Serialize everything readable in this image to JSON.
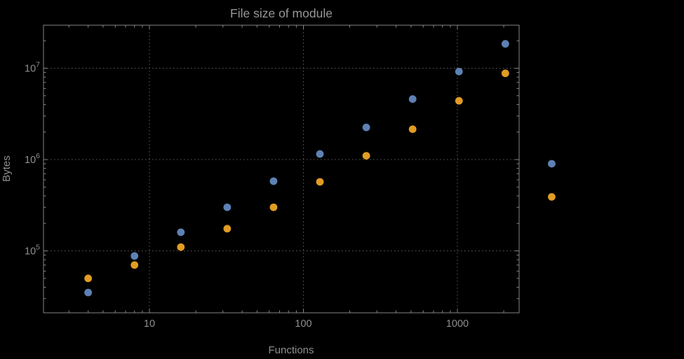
{
  "chart_data": {
    "type": "scatter",
    "title": "File size of module",
    "xlabel": "Functions",
    "ylabel": "Bytes",
    "x_scale": "log",
    "y_scale": "log",
    "grid": "dotted",
    "frame": true,
    "legend": "none",
    "x_range": [
      2.1,
      2500
    ],
    "y_range": [
      21000,
      29000000
    ],
    "x": [
      4,
      8,
      16,
      32,
      64,
      128,
      256,
      512,
      1024,
      2048,
      4096
    ],
    "series": [
      {
        "name": "blue",
        "color": "#5e81b5",
        "values": [
          35000,
          88000,
          160000,
          300000,
          580000,
          1150000,
          2250000,
          4600000,
          9200000,
          18500000,
          900000
        ]
      },
      {
        "name": "orange",
        "color": "#e19c24",
        "values": [
          50000,
          70000,
          110000,
          175000,
          300000,
          570000,
          1100000,
          2150000,
          4400000,
          8800000,
          390000
        ]
      }
    ],
    "x_ticks": [
      {
        "label": "10",
        "value": 10
      },
      {
        "label": "100",
        "value": 100
      },
      {
        "label": "1000",
        "value": 1000
      }
    ],
    "y_ticks": [
      {
        "base": "10",
        "exp": "5",
        "value": 100000
      },
      {
        "base": "10",
        "exp": "6",
        "value": 1000000
      },
      {
        "base": "10",
        "exp": "7",
        "value": 10000000
      }
    ]
  },
  "colors": {
    "background": "#000000",
    "frame": "#848484",
    "grid": "#5f5f5f",
    "tick": "#848484",
    "text": "#8f8f8f",
    "title": "#969696"
  }
}
